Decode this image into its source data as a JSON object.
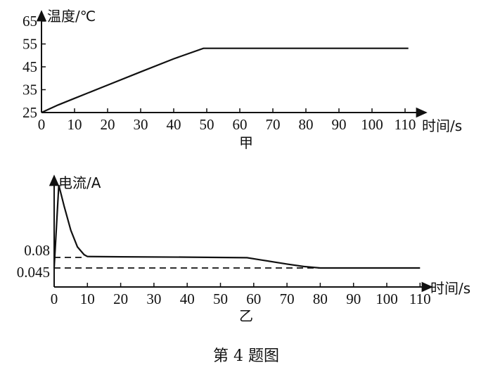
{
  "chart_data": [
    {
      "type": "line",
      "panel_label": "甲",
      "xlabel": "时间/s",
      "ylabel": "温度/℃",
      "xlim": [
        0,
        110
      ],
      "ylim": [
        25,
        65
      ],
      "x_ticks": [
        "0",
        "10",
        "20",
        "30",
        "40",
        "50",
        "60",
        "70",
        "80",
        "90",
        "100",
        "110"
      ],
      "y_ticks": [
        "25",
        "35",
        "45",
        "55",
        "65"
      ],
      "series": [
        {
          "x": [
            0,
            5,
            10,
            20,
            30,
            40,
            49,
            60,
            80,
            100,
            111
          ],
          "y": [
            25,
            28.3,
            31.2,
            37,
            42.8,
            48.5,
            53.1,
            53.1,
            53.1,
            53.1,
            53.1
          ]
        }
      ]
    },
    {
      "type": "line",
      "panel_label": "乙",
      "xlabel": "时间/s",
      "ylabel": "电流/A",
      "xlim": [
        0,
        110
      ],
      "x_ticks": [
        "0",
        "10",
        "20",
        "30",
        "40",
        "50",
        "60",
        "70",
        "80",
        "90",
        "100",
        "110"
      ],
      "y_ticks": [
        "0.08",
        "0.045"
      ],
      "reference_lines": [
        0.08,
        0.045
      ],
      "series": [
        {
          "x": [
            0,
            1.4,
            3,
            5,
            7,
            9,
            10,
            20,
            40,
            58,
            62,
            70,
            75,
            80,
            90,
            100,
            110
          ],
          "y": [
            0.045,
            0.32,
            0.25,
            0.17,
            0.115,
            0.089,
            0.083,
            0.082,
            0.081,
            0.079,
            0.072,
            0.058,
            0.05,
            0.045,
            0.045,
            0.045,
            0.045
          ]
        }
      ]
    }
  ],
  "caption": "第 4 题图"
}
